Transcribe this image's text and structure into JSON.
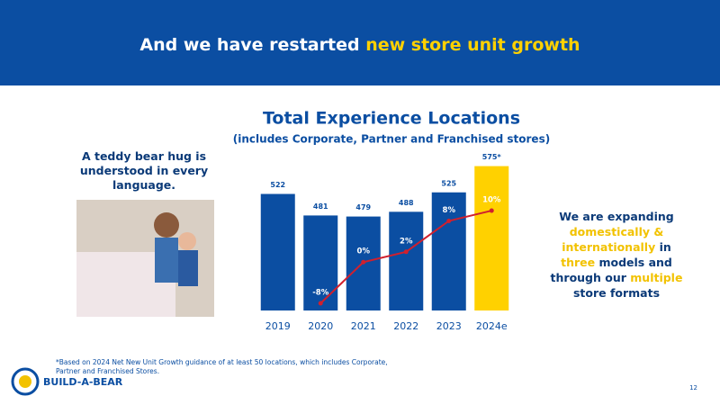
{
  "header": {
    "title": "And we have restarted",
    "title_highlight": "new store unit growth"
  },
  "left_text": "A teddy bear hug is understood in every language.",
  "right_text": [
    {
      "text": "We are expanding",
      "highlight": false
    },
    {
      "text": "domestically & internationally",
      "highlight": true
    },
    {
      "text": "in",
      "highlight": false
    },
    {
      "text": "three",
      "highlight": true
    },
    {
      "text": "models and through our",
      "highlight": false
    },
    {
      "text": "multiple",
      "highlight": true
    },
    {
      "text": "store formats",
      "highlight": false
    }
  ],
  "footnote": "*Based on 2024 Net New Unit Growth guidance of at least 50 locations, which includes Corporate, Partner and Franchised Stores.",
  "logo": "BUILD-A-BEAR",
  "page_number": "12",
  "chart_data": {
    "type": "bar",
    "title": "Total Experience Locations",
    "subtitle": "(includes Corporate, Partner and Franchised stores)",
    "categories": [
      "2019",
      "2020",
      "2021",
      "2022",
      "2023",
      "2024e"
    ],
    "ylim": [
      300,
      600
    ],
    "y2lim": [
      -9.4,
      21.2
    ],
    "series": [
      {
        "type": "bar",
        "values": [
          522,
          481,
          479,
          488,
          525,
          575
        ],
        "value_labels": [
          "522",
          "481",
          "479",
          "488",
          "525",
          "575*"
        ],
        "colors": [
          "#0b4ea2",
          "#0b4ea2",
          "#0b4ea2",
          "#0b4ea2",
          "#0b4ea2",
          "#ffd100"
        ]
      },
      {
        "type": "line",
        "axis": "y2",
        "color": "#d0202e",
        "values": [
          null,
          -8,
          0,
          2,
          8,
          10
        ],
        "value_labels": [
          null,
          "-8%",
          "0%",
          "2%",
          "8%",
          "10%"
        ]
      }
    ]
  }
}
